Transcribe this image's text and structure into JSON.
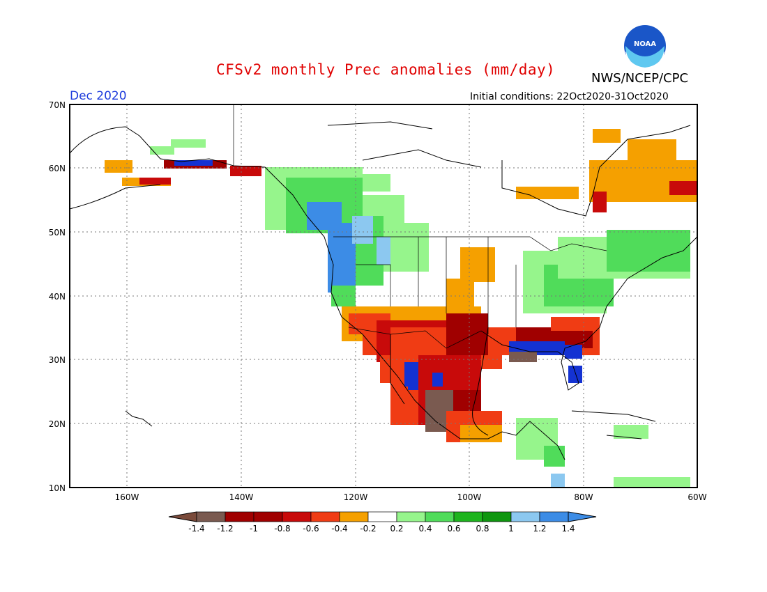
{
  "header": {
    "title": "CFSv2 monthly Prec anomalies (mm/day)",
    "org": "NWS/NCEP/CPC",
    "period": "Dec 2020",
    "initial_conditions": "Initial conditions: 22Oct2020-31Oct2020",
    "logo_text": "NOAA"
  },
  "map": {
    "lat_labels": [
      "70N",
      "60N",
      "50N",
      "40N",
      "30N",
      "20N",
      "10N"
    ],
    "lon_labels": [
      "160W",
      "140W",
      "120W",
      "100W",
      "80W",
      "60W"
    ]
  },
  "colorbar": {
    "labels": [
      "-1.4",
      "-1.2",
      "-1",
      "-0.8",
      "-0.6",
      "-0.4",
      "-0.2",
      "0.2",
      "0.4",
      "0.6",
      "0.8",
      "1",
      "1.2",
      "1.4"
    ],
    "colors": [
      "#8b5a4a",
      "#7a5a50",
      "#1432d2",
      "#a00000",
      "#c80a0a",
      "#f03c14",
      "#f5a000",
      "#ffffff",
      "#96f58c",
      "#50dc5a",
      "#1eb41e",
      "#0f960f",
      "#8cc8f0",
      "#3c8ce6",
      "#3c8ce6"
    ]
  },
  "colors": {
    "title": "#e00000",
    "period": "#1e3cdc",
    "dry_strong": "#a00000",
    "dry": "#f03c14",
    "dry_weak": "#f5a000",
    "wet_weak": "#96f58c",
    "wet": "#50dc5a",
    "wet_strong": "#1eb41e",
    "very_wet": "#3c8ce6",
    "very_dry": "#7a5a50"
  }
}
